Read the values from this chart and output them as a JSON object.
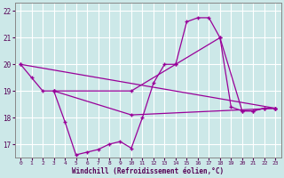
{
  "xlabel": "Windchill (Refroidissement éolien,°C)",
  "bg_color": "#cce8e8",
  "grid_color": "#aadddd",
  "line_color": "#990099",
  "xlim": [
    -0.5,
    23.5
  ],
  "ylim": [
    16.5,
    22.3
  ],
  "yticks": [
    17,
    18,
    19,
    20,
    21,
    22
  ],
  "xticks": [
    0,
    1,
    2,
    3,
    4,
    5,
    6,
    7,
    8,
    9,
    10,
    11,
    12,
    13,
    14,
    15,
    16,
    17,
    18,
    19,
    20,
    21,
    22,
    23
  ],
  "line1_x": [
    0,
    1,
    2,
    3,
    4,
    5,
    6,
    7,
    8,
    9,
    10,
    11,
    12,
    13,
    14,
    15,
    16,
    17,
    18,
    19,
    20,
    21,
    22,
    23
  ],
  "line1_y": [
    20.0,
    19.5,
    19.0,
    19.0,
    17.85,
    16.6,
    16.7,
    16.8,
    17.0,
    17.1,
    16.85,
    18.0,
    19.3,
    20.0,
    20.0,
    21.6,
    21.75,
    21.75,
    21.0,
    18.4,
    18.25,
    18.25,
    18.35,
    18.35
  ],
  "line2_x": [
    0,
    23
  ],
  "line2_y": [
    20.0,
    18.35
  ],
  "line3_x": [
    3,
    10,
    14,
    18,
    20,
    21,
    22,
    23
  ],
  "line3_y": [
    19.0,
    19.0,
    20.0,
    21.0,
    18.25,
    18.25,
    18.35,
    18.35
  ],
  "line4_x": [
    3,
    10,
    23
  ],
  "line4_y": [
    19.0,
    18.1,
    18.35
  ]
}
